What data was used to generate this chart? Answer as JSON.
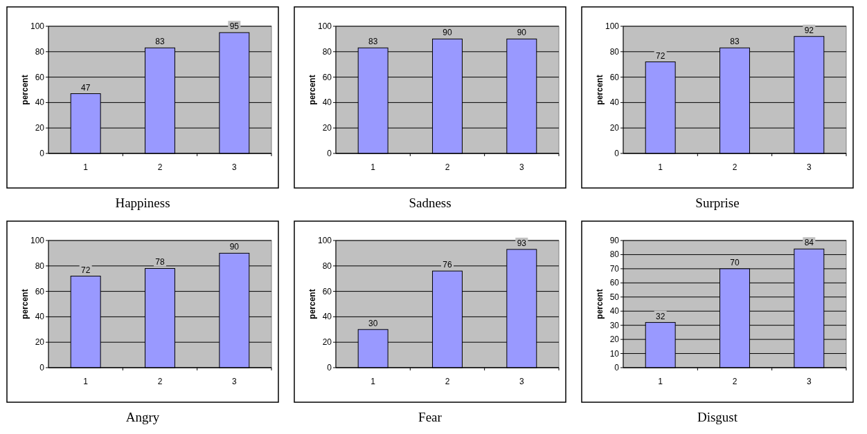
{
  "chart_data": [
    {
      "type": "bar",
      "title": "Happiness",
      "ylabel": "percent",
      "categories": [
        "1",
        "2",
        "3"
      ],
      "values": [
        47,
        83,
        95
      ],
      "color": "#9999ff",
      "ylim": [
        0,
        100
      ],
      "yticks": [
        0,
        20,
        40,
        60,
        80,
        100
      ],
      "grid": "y",
      "data_labels": true
    },
    {
      "type": "bar",
      "title": "Sadness",
      "ylabel": "percent",
      "categories": [
        "1",
        "2",
        "3"
      ],
      "values": [
        83,
        90,
        90
      ],
      "color": "#9999ff",
      "ylim": [
        0,
        100
      ],
      "yticks": [
        0,
        20,
        40,
        60,
        80,
        100
      ],
      "grid": "y",
      "data_labels": true
    },
    {
      "type": "bar",
      "title": "Surprise",
      "ylabel": "percent",
      "categories": [
        "1",
        "2",
        "3"
      ],
      "values": [
        72,
        83,
        92
      ],
      "color": "#9999ff",
      "ylim": [
        0,
        100
      ],
      "yticks": [
        0,
        20,
        40,
        60,
        80,
        100
      ],
      "grid": "y",
      "data_labels": true
    },
    {
      "type": "bar",
      "title": "Angry",
      "ylabel": "percent",
      "categories": [
        "1",
        "2",
        "3"
      ],
      "values": [
        72,
        78,
        90
      ],
      "color": "#9999ff",
      "ylim": [
        0,
        100
      ],
      "yticks": [
        0,
        20,
        40,
        60,
        80,
        100
      ],
      "grid": "y",
      "data_labels": true
    },
    {
      "type": "bar",
      "title": "Fear",
      "ylabel": "percent",
      "categories": [
        "1",
        "2",
        "3"
      ],
      "values": [
        30,
        76,
        93
      ],
      "color": "#9999ff",
      "ylim": [
        0,
        100
      ],
      "yticks": [
        0,
        20,
        40,
        60,
        80,
        100
      ],
      "grid": "y",
      "data_labels": true
    },
    {
      "type": "bar",
      "title": "Disgust",
      "ylabel": "percent",
      "categories": [
        "1",
        "2",
        "3"
      ],
      "values": [
        32,
        70,
        84
      ],
      "color": "#9999ff",
      "ylim": [
        0,
        90
      ],
      "yticks": [
        0,
        10,
        20,
        30,
        40,
        50,
        60,
        70,
        80,
        90
      ],
      "grid": "y",
      "data_labels": true
    }
  ]
}
